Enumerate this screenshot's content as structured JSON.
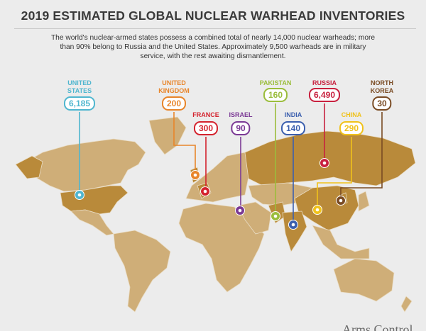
{
  "title": "2019 ESTIMATED GLOBAL NUCLEAR WARHEAD INVENTORIES",
  "subtitle": "The world's nuclear-armed states possess a combined total of nearly 14,000 nuclear warheads; more than 90% belong to Russia and the United States. Approximately 9,500 warheads are in military service, with the rest awaiting dismantlement.",
  "countries": [
    {
      "name": "UNITED STATES",
      "value": "6,185",
      "color": "#4fb6cf"
    },
    {
      "name": "UNITED KINGDOM",
      "value": "200",
      "color": "#e8852a"
    },
    {
      "name": "FRANCE",
      "value": "300",
      "color": "#d4232e"
    },
    {
      "name": "ISRAEL",
      "value": "90",
      "color": "#7b3a95"
    },
    {
      "name": "PAKISTAN",
      "value": "160",
      "color": "#9bbd3c"
    },
    {
      "name": "INDIA",
      "value": "140",
      "color": "#3b5fae"
    },
    {
      "name": "RUSSIA",
      "value": "6,490",
      "color": "#c8213f"
    },
    {
      "name": "CHINA",
      "value": "290",
      "color": "#f0c21b"
    },
    {
      "name": "NORTH KOREA",
      "value": "30",
      "color": "#7a4b23"
    }
  ],
  "footer": "Arms Control"
}
